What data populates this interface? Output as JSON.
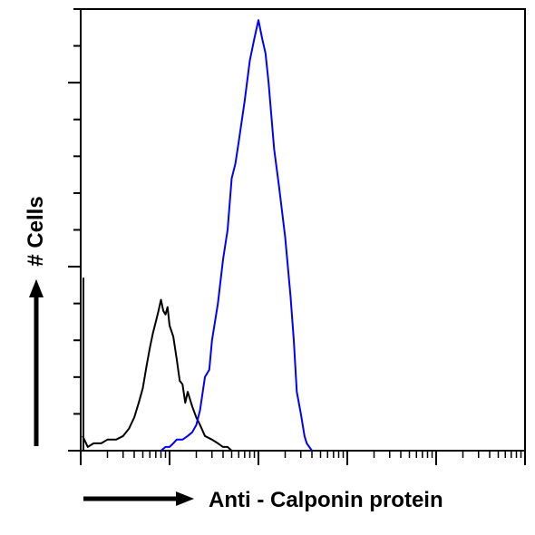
{
  "chart_data": {
    "type": "area",
    "title": "",
    "xlabel": "Anti - Calponin protein",
    "ylabel": "# Cells",
    "x_scale": "log",
    "xlim": [
      1,
      100000
    ],
    "ylim": [
      0,
      120
    ],
    "x_tick_labels_shown": false,
    "y_tick_labels_shown": false,
    "legend": "none",
    "grid": false,
    "series": [
      {
        "color": "#000000",
        "fill": "none",
        "x": [
          1.05,
          1.2,
          1.4,
          1.7,
          2,
          2.5,
          3,
          3.5,
          4,
          4.5,
          5,
          5.5,
          6,
          6.5,
          7,
          7.5,
          8,
          8.5,
          9,
          9.5,
          10,
          11,
          12,
          13,
          14,
          15,
          16,
          18,
          20,
          22,
          25,
          30,
          35,
          40,
          45,
          50
        ],
        "values": [
          4,
          1,
          2,
          2,
          3,
          3,
          4,
          6,
          9,
          13,
          17,
          23,
          28,
          32,
          35,
          38,
          41,
          38,
          37,
          39,
          34,
          31,
          25,
          19,
          18,
          13,
          16,
          12,
          9,
          7,
          4,
          3,
          2,
          1,
          1,
          0
        ]
      },
      {
        "color": "#0000ff",
        "fill": "none",
        "x": [
          8,
          9,
          10,
          11,
          12,
          14,
          16,
          18,
          20,
          22,
          25,
          28,
          30,
          35,
          40,
          45,
          50,
          55,
          60,
          70,
          80,
          90,
          100,
          110,
          120,
          130,
          150,
          170,
          200,
          230,
          250,
          270,
          300,
          330,
          350,
          400
        ],
        "values": [
          0,
          1,
          1,
          2,
          3,
          3,
          4,
          5,
          7,
          11,
          20,
          22,
          30,
          40,
          52,
          60,
          74,
          78,
          84,
          95,
          106,
          112,
          117,
          112,
          108,
          100,
          82,
          72,
          58,
          42,
          30,
          16,
          10,
          4,
          2,
          0
        ]
      }
    ]
  }
}
